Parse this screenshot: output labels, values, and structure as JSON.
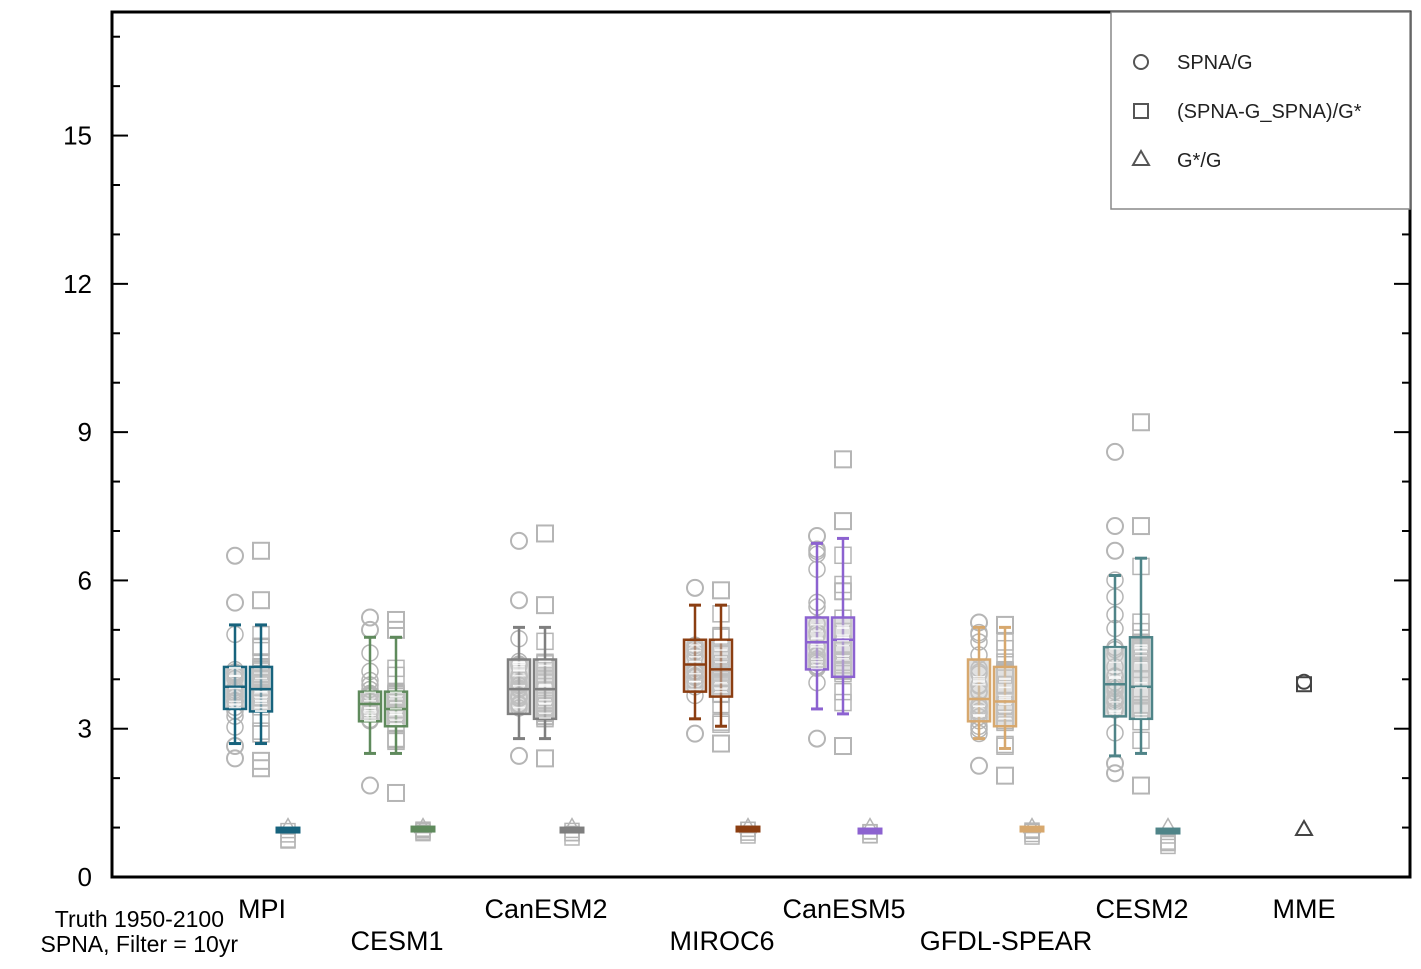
{
  "chart_data": {
    "type": "boxplot",
    "ylim": [
      0,
      17.5
    ],
    "yticks": [
      0,
      3,
      6,
      9,
      12,
      15
    ],
    "legend": {
      "placement": "top-right",
      "entries": [
        {
          "marker": "circle",
          "label": "SPNA/G"
        },
        {
          "marker": "square",
          "label": "(SPNA-G_SPNA)/G*"
        },
        {
          "marker": "triangle",
          "label": "G*/G"
        }
      ]
    },
    "notes": [
      "Truth 1950-2100",
      "SPNA, Filter = 10yr"
    ],
    "models": [
      {
        "name": "MPI",
        "color": "#17637d",
        "label_row": 1,
        "spna_g": {
          "q1": 3.4,
          "median": 3.85,
          "q3": 4.25,
          "whislo": 2.7,
          "whishi": 5.1
        },
        "spna_gstar": {
          "q1": 3.35,
          "median": 3.8,
          "q3": 4.25,
          "whislo": 2.7,
          "whishi": 5.1
        },
        "gstar_g": {
          "median": 0.95,
          "min": 0.72,
          "max": 1.02
        },
        "circle_outliers": [
          2.4,
          2.65,
          5.55,
          6.5
        ],
        "square_outliers": [
          2.2,
          2.35,
          5.6,
          6.6
        ]
      },
      {
        "name": "CESM1",
        "color": "#5f8a5c",
        "label_row": 2,
        "spna_g": {
          "q1": 3.15,
          "median": 3.5,
          "q3": 3.75,
          "whislo": 2.5,
          "whishi": 4.85
        },
        "spna_gstar": {
          "q1": 3.05,
          "median": 3.4,
          "q3": 3.75,
          "whislo": 2.5,
          "whishi": 4.85
        },
        "gstar_g": {
          "median": 0.97,
          "min": 0.85,
          "max": 1.02
        },
        "circle_outliers": [
          1.85,
          5.0,
          5.25
        ],
        "square_outliers": [
          1.7,
          5.0,
          5.2
        ]
      },
      {
        "name": "CanESM2",
        "color": "#7f7f7f",
        "label_row": 1,
        "spna_g": {
          "q1": 3.3,
          "median": 3.8,
          "q3": 4.4,
          "whislo": 2.8,
          "whishi": 5.05
        },
        "spna_gstar": {
          "q1": 3.2,
          "median": 3.8,
          "q3": 4.4,
          "whislo": 2.8,
          "whishi": 5.05
        },
        "gstar_g": {
          "median": 0.95,
          "min": 0.75,
          "max": 1.02
        },
        "circle_outliers": [
          2.45,
          5.6,
          6.8
        ],
        "square_outliers": [
          2.4,
          5.5,
          6.95
        ]
      },
      {
        "name": "MIROC6",
        "color": "#8b3e12",
        "label_row": 2,
        "spna_g": {
          "q1": 3.75,
          "median": 4.3,
          "q3": 4.8,
          "whislo": 3.2,
          "whishi": 5.5
        },
        "spna_gstar": {
          "q1": 3.65,
          "median": 4.2,
          "q3": 4.8,
          "whislo": 3.05,
          "whishi": 5.5
        },
        "gstar_g": {
          "median": 0.97,
          "min": 0.8,
          "max": 1.02
        },
        "circle_outliers": [
          2.9,
          5.85
        ],
        "square_outliers": [
          2.7,
          5.8
        ]
      },
      {
        "name": "CanESM5",
        "color": "#8c62d0",
        "label_row": 1,
        "spna_g": {
          "q1": 4.2,
          "median": 4.75,
          "q3": 5.25,
          "whislo": 3.4,
          "whishi": 6.75
        },
        "spna_gstar": {
          "q1": 4.05,
          "median": 4.8,
          "q3": 5.25,
          "whislo": 3.3,
          "whishi": 6.85
        },
        "gstar_g": {
          "median": 0.93,
          "min": 0.65,
          "max": 1.02
        },
        "circle_outliers": [
          2.8,
          6.9
        ],
        "square_outliers": [
          2.65,
          7.2,
          8.45
        ]
      },
      {
        "name": "GFDL-SPEAR",
        "color": "#d7a86e",
        "label_row": 2,
        "spna_g": {
          "q1": 3.15,
          "median": 3.6,
          "q3": 4.4,
          "whislo": 2.8,
          "whishi": 5.05
        },
        "spna_gstar": {
          "q1": 3.05,
          "median": 3.55,
          "q3": 4.25,
          "whislo": 2.6,
          "whishi": 5.05
        },
        "gstar_g": {
          "median": 0.97,
          "min": 0.8,
          "max": 1.02
        },
        "circle_outliers": [
          2.25,
          5.15
        ],
        "square_outliers": [
          2.05,
          5.1
        ]
      },
      {
        "name": "CESM2",
        "color": "#4f8488",
        "label_row": 1,
        "spna_g": {
          "q1": 3.25,
          "median": 3.9,
          "q3": 4.65,
          "whislo": 2.45,
          "whishi": 6.1
        },
        "spna_gstar": {
          "q1": 3.2,
          "median": 3.85,
          "q3": 4.85,
          "whislo": 2.5,
          "whishi": 6.45
        },
        "gstar_g": {
          "median": 0.93,
          "min": 0.55,
          "max": 1.02
        },
        "circle_outliers": [
          2.1,
          2.3,
          6.6,
          7.1,
          8.6
        ],
        "square_outliers": [
          1.85,
          7.1,
          9.2
        ]
      },
      {
        "name": "MME",
        "color": "#444444",
        "label_row": 1,
        "mme": {
          "spna_g": 3.95,
          "spna_gstar": 3.9,
          "gstar_g": 0.97
        }
      }
    ]
  }
}
